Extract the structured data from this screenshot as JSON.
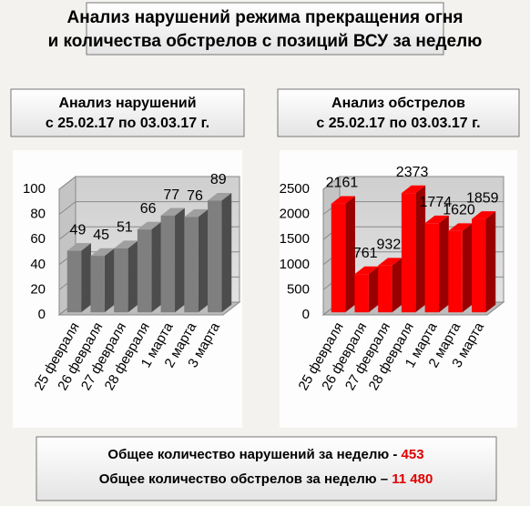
{
  "header": {
    "title": [
      "Анализ нарушений режима прекращения огня",
      "и количества обстрелов с позиций ВСУ за неделю"
    ]
  },
  "chart_data": [
    {
      "type": "bar3d",
      "title": "Анализ нарушений",
      "subtitle": "с 25.02.17 по 03.03.17 г.",
      "categories": [
        "25 февраля",
        "26 февраля",
        "27 февраля",
        "28 февраля",
        "1 марта",
        "2 марта",
        "3 марта"
      ],
      "values": [
        49,
        45,
        51,
        66,
        77,
        76,
        89
      ],
      "color": "#7f7f7f",
      "ylim": [
        0,
        100
      ],
      "yticks": [
        0,
        20,
        40,
        60,
        80,
        100
      ],
      "grid": true
    },
    {
      "type": "bar3d",
      "title": "Анализ обстрелов",
      "subtitle": "с 25.02.17 по 03.03.17 г.",
      "categories": [
        "25 февраля",
        "26 февраля",
        "27 февраля",
        "28 февраля",
        "1 марта",
        "2 марта",
        "3 марта"
      ],
      "values": [
        2161,
        761,
        932,
        2373,
        1774,
        1620,
        1859
      ],
      "color": "#ff0000",
      "ylim": [
        0,
        2500
      ],
      "yticks": [
        0,
        500,
        1000,
        1500,
        2000,
        2500
      ],
      "grid": true
    }
  ],
  "summary": [
    {
      "label": "Общее количество нарушений за неделю -",
      "value": "453"
    },
    {
      "label": "Общее количество обстрелов за неделю –",
      "value": "11 480"
    }
  ]
}
